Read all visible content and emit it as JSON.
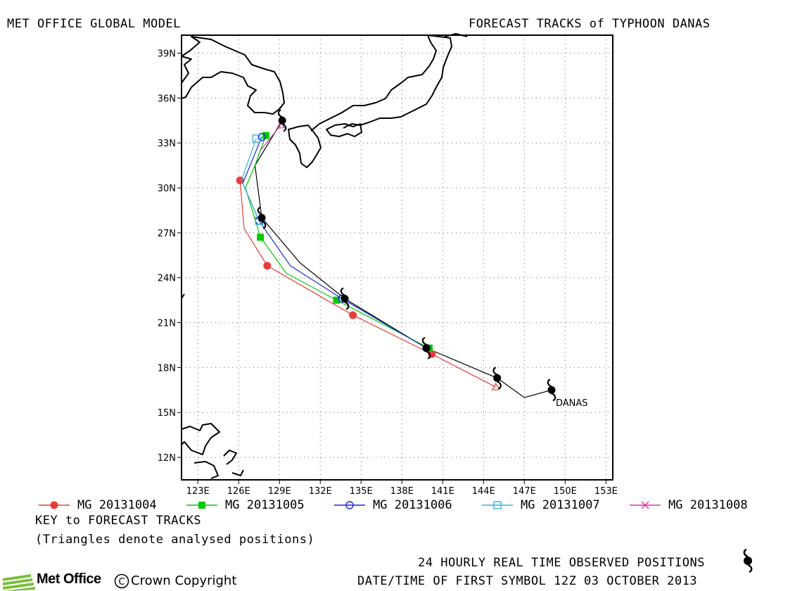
{
  "header": {
    "left": "MET OFFICE GLOBAL MODEL",
    "right": "FORECAST TRACKS of TYPHOON DANAS"
  },
  "map": {
    "lon_ticks": [
      "123E",
      "126E",
      "129E",
      "132E",
      "135E",
      "138E",
      "141E",
      "144E",
      "147E",
      "150E",
      "153E"
    ],
    "lat_ticks": [
      "39N",
      "36N",
      "33N",
      "30N",
      "27N",
      "24N",
      "21N",
      "18N",
      "15N",
      "12N"
    ],
    "storm_label": "DANAS"
  },
  "chart_data": {
    "type": "map-tracks",
    "xlim": [
      121.8,
      153.5
    ],
    "ylim": [
      10.5,
      40.2
    ],
    "observed": {
      "color": "#000000",
      "symbol_positions": [
        [
          149.0,
          16.5
        ],
        [
          145.0,
          17.3
        ],
        [
          139.8,
          19.3
        ],
        [
          133.8,
          22.6
        ],
        [
          127.7,
          28.0
        ],
        [
          129.2,
          34.5
        ]
      ],
      "track": [
        [
          149.0,
          16.5
        ],
        [
          147.0,
          16.0
        ],
        [
          145.0,
          17.3
        ],
        [
          139.8,
          19.3
        ],
        [
          133.8,
          22.6
        ],
        [
          130.5,
          25.0
        ],
        [
          127.7,
          28.0
        ],
        [
          127.2,
          31.5
        ],
        [
          129.2,
          34.5
        ]
      ]
    },
    "series": [
      {
        "name": "MG 20131004",
        "color": "#e83c3c",
        "marker": "circle-filled",
        "points": [
          [
            144.9,
            16.7
          ],
          [
            140.2,
            18.9
          ],
          [
            134.4,
            21.5
          ],
          [
            128.1,
            24.8
          ],
          [
            126.1,
            30.5
          ]
        ],
        "track": [
          [
            144.9,
            16.7
          ],
          [
            140.2,
            18.9
          ],
          [
            134.4,
            21.5
          ],
          [
            128.1,
            24.8
          ],
          [
            126.4,
            27.3
          ],
          [
            126.1,
            30.5
          ]
        ]
      },
      {
        "name": "MG 20131005",
        "color": "#00c800",
        "marker": "square-filled",
        "points": [
          [
            140.0,
            19.3
          ],
          [
            133.2,
            22.5
          ],
          [
            127.6,
            26.7
          ],
          [
            128.0,
            33.5
          ]
        ],
        "track": [
          [
            140.0,
            19.3
          ],
          [
            133.2,
            22.5
          ],
          [
            129.5,
            24.3
          ],
          [
            127.6,
            26.7
          ],
          [
            126.5,
            30.0
          ],
          [
            127.2,
            31.5
          ],
          [
            128.0,
            33.5
          ]
        ]
      },
      {
        "name": "MG 20131006",
        "color": "#1a2ad8",
        "marker": "circle-open",
        "points": [
          [
            139.8,
            19.3
          ],
          [
            133.6,
            22.6
          ],
          [
            127.5,
            27.8
          ],
          [
            127.7,
            33.4
          ]
        ],
        "track": [
          [
            139.8,
            19.3
          ],
          [
            133.6,
            22.6
          ],
          [
            129.8,
            24.8
          ],
          [
            127.5,
            27.8
          ],
          [
            126.3,
            30.3
          ],
          [
            127.7,
            33.4
          ]
        ]
      },
      {
        "name": "MG 20131007",
        "color": "#33b4d9",
        "marker": "square-open",
        "points": [
          [
            127.5,
            27.8
          ],
          [
            127.3,
            33.3
          ]
        ],
        "track": [
          [
            127.5,
            27.8
          ],
          [
            126.2,
            30.5
          ],
          [
            127.3,
            33.3
          ]
        ]
      },
      {
        "name": "MG 20131008",
        "color": "#d63a9a",
        "marker": "cross",
        "points": [
          [
            129.1,
            34.2
          ]
        ],
        "track": [
          [
            127.6,
            32.5
          ],
          [
            129.1,
            34.2
          ]
        ]
      }
    ]
  },
  "legend": {
    "items": [
      {
        "label": "MG 20131004",
        "color": "#e83c3c",
        "marker": "circle-filled"
      },
      {
        "label": "MG 20131005",
        "color": "#00c800",
        "marker": "square-filled"
      },
      {
        "label": "MG 20131006",
        "color": "#1a2ad8",
        "marker": "circle-open"
      },
      {
        "label": "MG 20131007",
        "color": "#33b4d9",
        "marker": "square-open"
      },
      {
        "label": "MG 20131008",
        "color": "#d63a9a",
        "marker": "cross"
      }
    ]
  },
  "notes": {
    "key": "KEY to FORECAST TRACKS",
    "triangles": "(Triangles denote analysed positions)",
    "observed": "24 HOURLY REAL TIME OBSERVED POSITIONS",
    "datetime": "DATE/TIME OF FIRST SYMBOL 12Z 03 OCTOBER 2013"
  },
  "footer": {
    "logo": "Met Office",
    "copyright": "Crown Copyright",
    "copyright_symbol": "C"
  }
}
